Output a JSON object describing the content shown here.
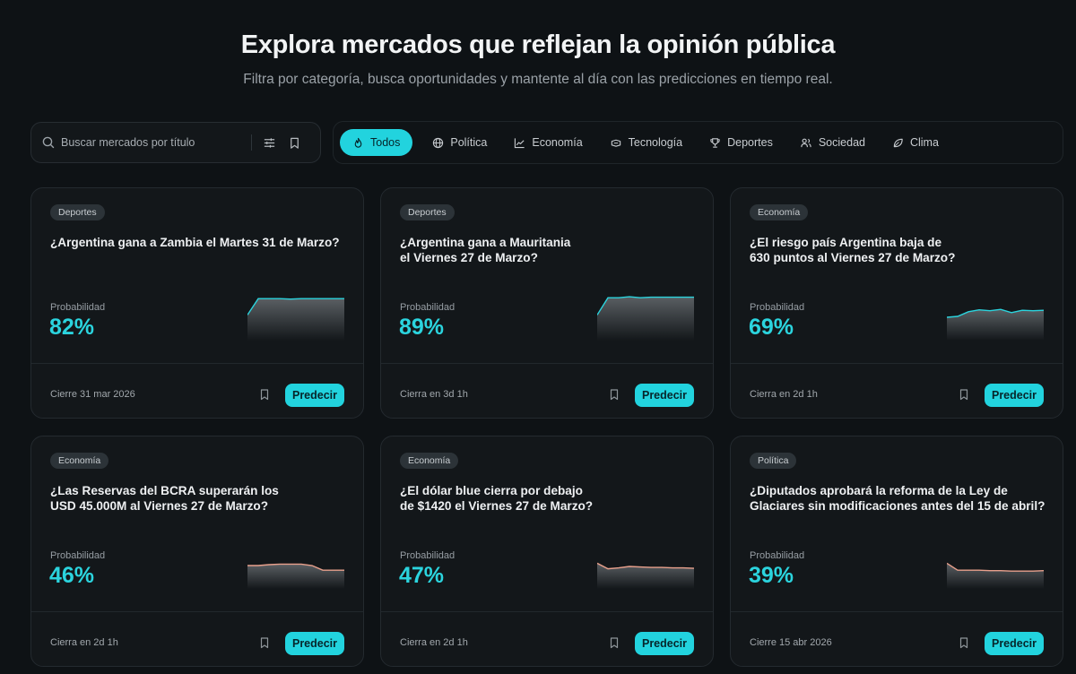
{
  "header": {
    "title": "Explora mercados que reflejan la opinión pública",
    "subtitle": "Filtra por categoría, busca oportunidades y mantente al día con las predicciones en tiempo real."
  },
  "search": {
    "placeholder": "Buscar mercados por título",
    "value": ""
  },
  "categories": [
    {
      "label": "Todos",
      "icon": "flame-icon",
      "active": true
    },
    {
      "label": "Política",
      "icon": "globe-icon"
    },
    {
      "label": "Economía",
      "icon": "line-chart-icon"
    },
    {
      "label": "Tecnología",
      "icon": "chip-icon"
    },
    {
      "label": "Deportes",
      "icon": "trophy-icon"
    },
    {
      "label": "Sociedad",
      "icon": "users-icon"
    },
    {
      "label": "Clima",
      "icon": "leaf-icon"
    }
  ],
  "colors": {
    "accent": "#22d3de",
    "background": "#0e1215",
    "card": "#13171a",
    "spark_up": "#2bd4de",
    "spark_down": "#e8a08c"
  },
  "probability_label": "Probabilidad",
  "predict_label": "Predecir",
  "markets": [
    {
      "tag": "Deportes",
      "title": "¿Argentina gana a Zambia el Martes 31 de Marzo?",
      "probability": "82%",
      "close": "Cierre 31 mar 2026",
      "trend": "up",
      "series": [
        0.55,
        0.9,
        0.9,
        0.9,
        0.89,
        0.9,
        0.9,
        0.9,
        0.9,
        0.9
      ]
    },
    {
      "tag": "Deportes",
      "title": "¿Argentina gana a Mauritania\nel Viernes 27 de Marzo?",
      "probability": "89%",
      "close": "Cierra en 3d 1h",
      "trend": "up",
      "series": [
        0.55,
        0.92,
        0.92,
        0.94,
        0.92,
        0.93,
        0.93,
        0.93,
        0.93,
        0.93
      ]
    },
    {
      "tag": "Economía",
      "title": "¿El riesgo país Argentina baja de\n630 puntos al Viernes 27 de Marzo?",
      "probability": "69%",
      "close": "Cierra en 2d 1h",
      "trend": "up",
      "series": [
        0.5,
        0.52,
        0.62,
        0.66,
        0.64,
        0.67,
        0.6,
        0.65,
        0.64,
        0.65
      ]
    },
    {
      "tag": "Economía",
      "title": "¿Las Reservas del BCRA superarán los\nUSD 45.000M al Viernes 27 de Marzo?",
      "probability": "46%",
      "close": "Cierra en 2d 1h",
      "trend": "down",
      "series": [
        0.5,
        0.5,
        0.52,
        0.53,
        0.53,
        0.53,
        0.5,
        0.4,
        0.4,
        0.4
      ]
    },
    {
      "tag": "Economía",
      "title": "¿El dólar blue cierra por debajo\nde $1420 el Viernes 27 de Marzo?",
      "probability": "47%",
      "close": "Cierra en 2d 1h",
      "trend": "down",
      "series": [
        0.55,
        0.43,
        0.45,
        0.48,
        0.47,
        0.46,
        0.46,
        0.45,
        0.45,
        0.44
      ]
    },
    {
      "tag": "Política",
      "title": "¿Diputados aprobará la reforma de la Ley de\nGlaciares sin modificaciones antes del 15 de abril?",
      "probability": "39%",
      "close": "Cierre 15 abr 2026",
      "trend": "down",
      "series": [
        0.55,
        0.4,
        0.4,
        0.4,
        0.39,
        0.39,
        0.38,
        0.38,
        0.38,
        0.39
      ]
    }
  ]
}
